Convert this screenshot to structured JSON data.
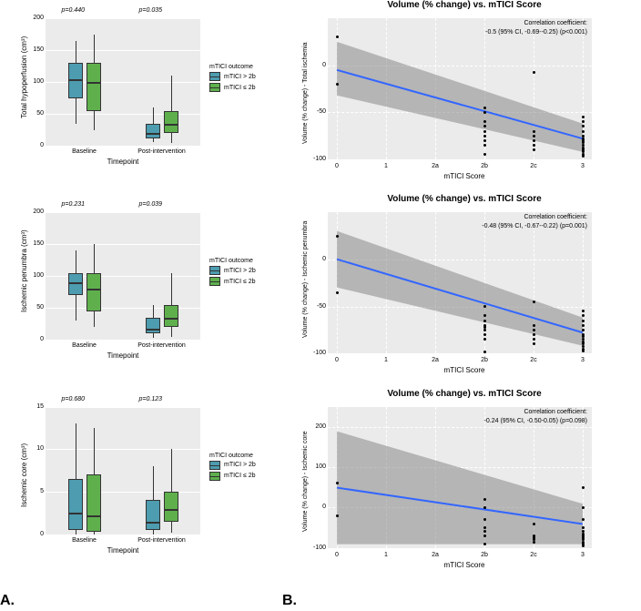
{
  "panel_labels": {
    "A": "A.",
    "B": "B."
  },
  "colors": {
    "teal": "#4d9cb0",
    "green": "#5fb04d",
    "plot_bg": "#ebebeb",
    "grid": "#ffffff",
    "reg_line": "#3366ff",
    "conf_band": "rgba(128,128,128,0.4)"
  },
  "legend": {
    "title": "mTICI outcome",
    "items": [
      {
        "label": "mTICI > 2b",
        "color": "#4d9cb0"
      },
      {
        "label": "mTICI ≤ 2b",
        "color": "#5fb04d"
      }
    ]
  },
  "boxplots": [
    {
      "ylabel": "Total hypoperfusion (cm³)",
      "xlabel": "Timepoint",
      "ylim": [
        0,
        200
      ],
      "ytick_step": 50,
      "xticks": [
        "Baseline",
        "Post-intervention"
      ],
      "pvals": [
        "p=0.440",
        "p=0.035"
      ],
      "groups": [
        {
          "boxes": [
            {
              "q1": 75,
              "median": 105,
              "q3": 130,
              "low": 35,
              "high": 165,
              "color": "#4d9cb0"
            },
            {
              "q1": 55,
              "median": 100,
              "q3": 130,
              "low": 25,
              "high": 175,
              "color": "#5fb04d"
            }
          ]
        },
        {
          "boxes": [
            {
              "q1": 12,
              "median": 20,
              "q3": 35,
              "low": 5,
              "high": 60,
              "color": "#4d9cb0"
            },
            {
              "q1": 20,
              "median": 35,
              "q3": 55,
              "low": 5,
              "high": 110,
              "color": "#5fb04d"
            }
          ]
        }
      ]
    },
    {
      "ylabel": "Ischemic penumbra (cm³)",
      "xlabel": "Timepoint",
      "ylim": [
        0,
        200
      ],
      "ytick_step": 50,
      "xticks": [
        "Baseline",
        "Post-intervention"
      ],
      "pvals": [
        "p=0.231",
        "p=0.039"
      ],
      "groups": [
        {
          "boxes": [
            {
              "q1": 70,
              "median": 90,
              "q3": 105,
              "low": 30,
              "high": 140,
              "color": "#4d9cb0"
            },
            {
              "q1": 45,
              "median": 80,
              "q3": 105,
              "low": 20,
              "high": 150,
              "color": "#5fb04d"
            }
          ]
        },
        {
          "boxes": [
            {
              "q1": 10,
              "median": 18,
              "q3": 35,
              "low": 3,
              "high": 55,
              "color": "#4d9cb0"
            },
            {
              "q1": 20,
              "median": 35,
              "q3": 55,
              "low": 5,
              "high": 105,
              "color": "#5fb04d"
            }
          ]
        }
      ]
    },
    {
      "ylabel": "Ischemic core (cm³)",
      "xlabel": "Timepoint",
      "ylim": [
        0,
        15
      ],
      "ytick_step": 5,
      "xticks": [
        "Baseline",
        "Post-intervention"
      ],
      "pvals": [
        "p=0.680",
        "p=0.123"
      ],
      "groups": [
        {
          "boxes": [
            {
              "q1": 0.5,
              "median": 2.5,
              "q3": 6.5,
              "low": 0,
              "high": 13,
              "color": "#4d9cb0"
            },
            {
              "q1": 0.3,
              "median": 2.2,
              "q3": 7.0,
              "low": 0,
              "high": 12.5,
              "color": "#5fb04d"
            }
          ]
        },
        {
          "boxes": [
            {
              "q1": 0.5,
              "median": 1.5,
              "q3": 4.0,
              "low": 0,
              "high": 8,
              "color": "#4d9cb0"
            },
            {
              "q1": 1.5,
              "median": 3.0,
              "q3": 5.0,
              "low": 0.2,
              "high": 10,
              "color": "#5fb04d"
            }
          ]
        }
      ]
    }
  ],
  "scatterplots": [
    {
      "title": "Volume (% change) vs. mTICI Score",
      "ylabel": "Volume (% change) - Total ischemia",
      "xlabel": "mTICI Score",
      "ylim": [
        -100,
        50
      ],
      "yticks": [
        -100,
        -50,
        0
      ],
      "xcats": [
        "0",
        "1",
        "2a",
        "2b",
        "2c",
        "3"
      ],
      "corr_label": "Correlation coefficient:",
      "corr_value": "-0.5 (95% CI, -0.69--0.25) (p<0.001)",
      "reg": {
        "y_at_x0": -5,
        "y_at_x5": -78
      },
      "band": {
        "top_x0": 25,
        "bot_x0": -32,
        "top_x5": -62,
        "bot_x5": -92
      },
      "points": [
        [
          0,
          -20
        ],
        [
          0,
          30
        ],
        [
          3,
          -50
        ],
        [
          3,
          -70
        ],
        [
          3,
          -75
        ],
        [
          3,
          -80
        ],
        [
          3,
          -85
        ],
        [
          3,
          -60
        ],
        [
          3,
          -45
        ],
        [
          3,
          -95
        ],
        [
          3,
          -65
        ],
        [
          4,
          -90
        ],
        [
          4,
          -70
        ],
        [
          4,
          -80
        ],
        [
          4,
          -85
        ],
        [
          4,
          -75
        ],
        [
          4,
          -8
        ],
        [
          5,
          -95
        ],
        [
          5,
          -90
        ],
        [
          5,
          -85
        ],
        [
          5,
          -80
        ],
        [
          5,
          -75
        ],
        [
          5,
          -70
        ],
        [
          5,
          -65
        ],
        [
          5,
          -60
        ],
        [
          5,
          -88
        ],
        [
          5,
          -92
        ],
        [
          5,
          -82
        ],
        [
          5,
          -78
        ],
        [
          5,
          -97
        ],
        [
          5,
          -55
        ]
      ]
    },
    {
      "title": "Volume (% change) vs. mTICI Score",
      "ylabel": "Volume (% change) - Ischemic penumbra",
      "xlabel": "mTICI Score",
      "ylim": [
        -100,
        50
      ],
      "yticks": [
        -100,
        -50,
        0
      ],
      "xcats": [
        "0",
        "1",
        "2a",
        "2b",
        "2c",
        "3"
      ],
      "corr_label": "Correlation coefficient:",
      "corr_value": "-0.48 (95% CI, -0.67--0.22) (p=0.001)",
      "reg": {
        "y_at_x0": 0,
        "y_at_x5": -78
      },
      "band": {
        "top_x0": 30,
        "bot_x0": -30,
        "top_x5": -62,
        "bot_x5": -92
      },
      "points": [
        [
          0,
          -35
        ],
        [
          0,
          25
        ],
        [
          3,
          -50
        ],
        [
          3,
          -70
        ],
        [
          3,
          -75
        ],
        [
          3,
          -80
        ],
        [
          3,
          -85
        ],
        [
          3,
          -60
        ],
        [
          3,
          -98
        ],
        [
          3,
          -65
        ],
        [
          3,
          -72
        ],
        [
          4,
          -90
        ],
        [
          4,
          -70
        ],
        [
          4,
          -80
        ],
        [
          4,
          -85
        ],
        [
          4,
          -75
        ],
        [
          4,
          -45
        ],
        [
          5,
          -95
        ],
        [
          5,
          -90
        ],
        [
          5,
          -85
        ],
        [
          5,
          -80
        ],
        [
          5,
          -75
        ],
        [
          5,
          -70
        ],
        [
          5,
          -65
        ],
        [
          5,
          -60
        ],
        [
          5,
          -88
        ],
        [
          5,
          -92
        ],
        [
          5,
          -82
        ],
        [
          5,
          -97
        ],
        [
          5,
          -55
        ]
      ]
    },
    {
      "title": "Volume (% change) vs. mTICI Score",
      "ylabel": "Volume (% change) - Ischemic core",
      "xlabel": "mTICI Score",
      "ylim": [
        -100,
        250
      ],
      "yticks": [
        -100,
        0,
        100,
        200
      ],
      "xcats": [
        "0",
        "1",
        "2a",
        "2b",
        "2c",
        "3"
      ],
      "corr_label": "Correlation coefficient:",
      "corr_value": "-0.24 (95% CI, -0.50-0.05) (p=0.098)",
      "reg": {
        "y_at_x0": 50,
        "y_at_x5": -40
      },
      "band": {
        "top_x0": 190,
        "bot_x0": -90,
        "top_x5": 10,
        "bot_x5": -90
      },
      "points": [
        [
          0,
          -20
        ],
        [
          0,
          60
        ],
        [
          3,
          -50
        ],
        [
          3,
          -70
        ],
        [
          3,
          -90
        ],
        [
          3,
          0
        ],
        [
          3,
          -30
        ],
        [
          3,
          20
        ],
        [
          3,
          -60
        ],
        [
          4,
          -80
        ],
        [
          4,
          -75
        ],
        [
          4,
          -70
        ],
        [
          4,
          -85
        ],
        [
          4,
          -40
        ],
        [
          5,
          -95
        ],
        [
          5,
          -90
        ],
        [
          5,
          -85
        ],
        [
          5,
          -80
        ],
        [
          5,
          -75
        ],
        [
          5,
          -70
        ],
        [
          5,
          -65
        ],
        [
          5,
          -60
        ],
        [
          5,
          -50
        ],
        [
          5,
          -30
        ],
        [
          5,
          0
        ],
        [
          5,
          50
        ]
      ]
    }
  ]
}
